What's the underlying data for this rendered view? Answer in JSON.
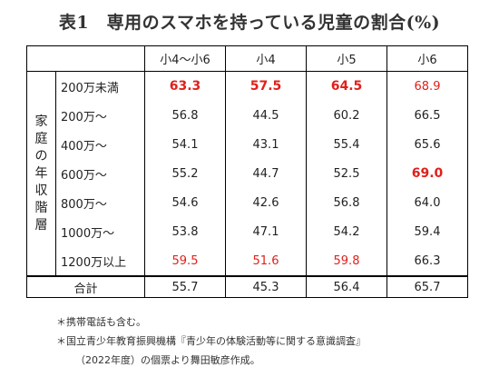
{
  "title": "表1　専用のスマホを持っている児童の割合(%)",
  "columns": [
    "小4〜小6",
    "小4",
    "小5",
    "小6"
  ],
  "group_label": [
    "家",
    "庭",
    "の",
    "年",
    "収",
    "階",
    "層"
  ],
  "rows": [
    {
      "label": "200万未満",
      "values": [
        "63.3",
        "57.5",
        "64.5",
        "68.9"
      ],
      "highlight": [
        "red-bold",
        "red-bold",
        "red-bold",
        "red"
      ]
    },
    {
      "label": "200万〜",
      "values": [
        "56.8",
        "44.5",
        "60.2",
        "66.5"
      ],
      "highlight": [
        "",
        "",
        "",
        ""
      ]
    },
    {
      "label": "400万〜",
      "values": [
        "54.1",
        "43.1",
        "55.4",
        "65.6"
      ],
      "highlight": [
        "",
        "",
        "",
        ""
      ]
    },
    {
      "label": "600万〜",
      "values": [
        "55.2",
        "44.7",
        "52.5",
        "69.0"
      ],
      "highlight": [
        "",
        "",
        "",
        "red-bold"
      ]
    },
    {
      "label": "800万〜",
      "values": [
        "54.6",
        "42.6",
        "56.8",
        "64.0"
      ],
      "highlight": [
        "",
        "",
        "",
        ""
      ]
    },
    {
      "label": "1000万〜",
      "values": [
        "53.8",
        "47.1",
        "54.2",
        "59.4"
      ],
      "highlight": [
        "",
        "",
        "",
        ""
      ]
    },
    {
      "label": "1200万以上",
      "values": [
        "59.5",
        "51.6",
        "59.8",
        "66.3"
      ],
      "highlight": [
        "red",
        "red",
        "red",
        ""
      ]
    }
  ],
  "total": {
    "label": "合計",
    "values": [
      "55.7",
      "45.3",
      "56.4",
      "65.7"
    ]
  },
  "notes": [
    "＊携帯電話も含む。",
    "＊国立青少年教育振興機構『青少年の体験活動等に関する意識調査』",
    "（2022年度）の個票より舞田敏彦作成。"
  ],
  "colors": {
    "highlight": "#e0201b",
    "text": "#222222"
  }
}
